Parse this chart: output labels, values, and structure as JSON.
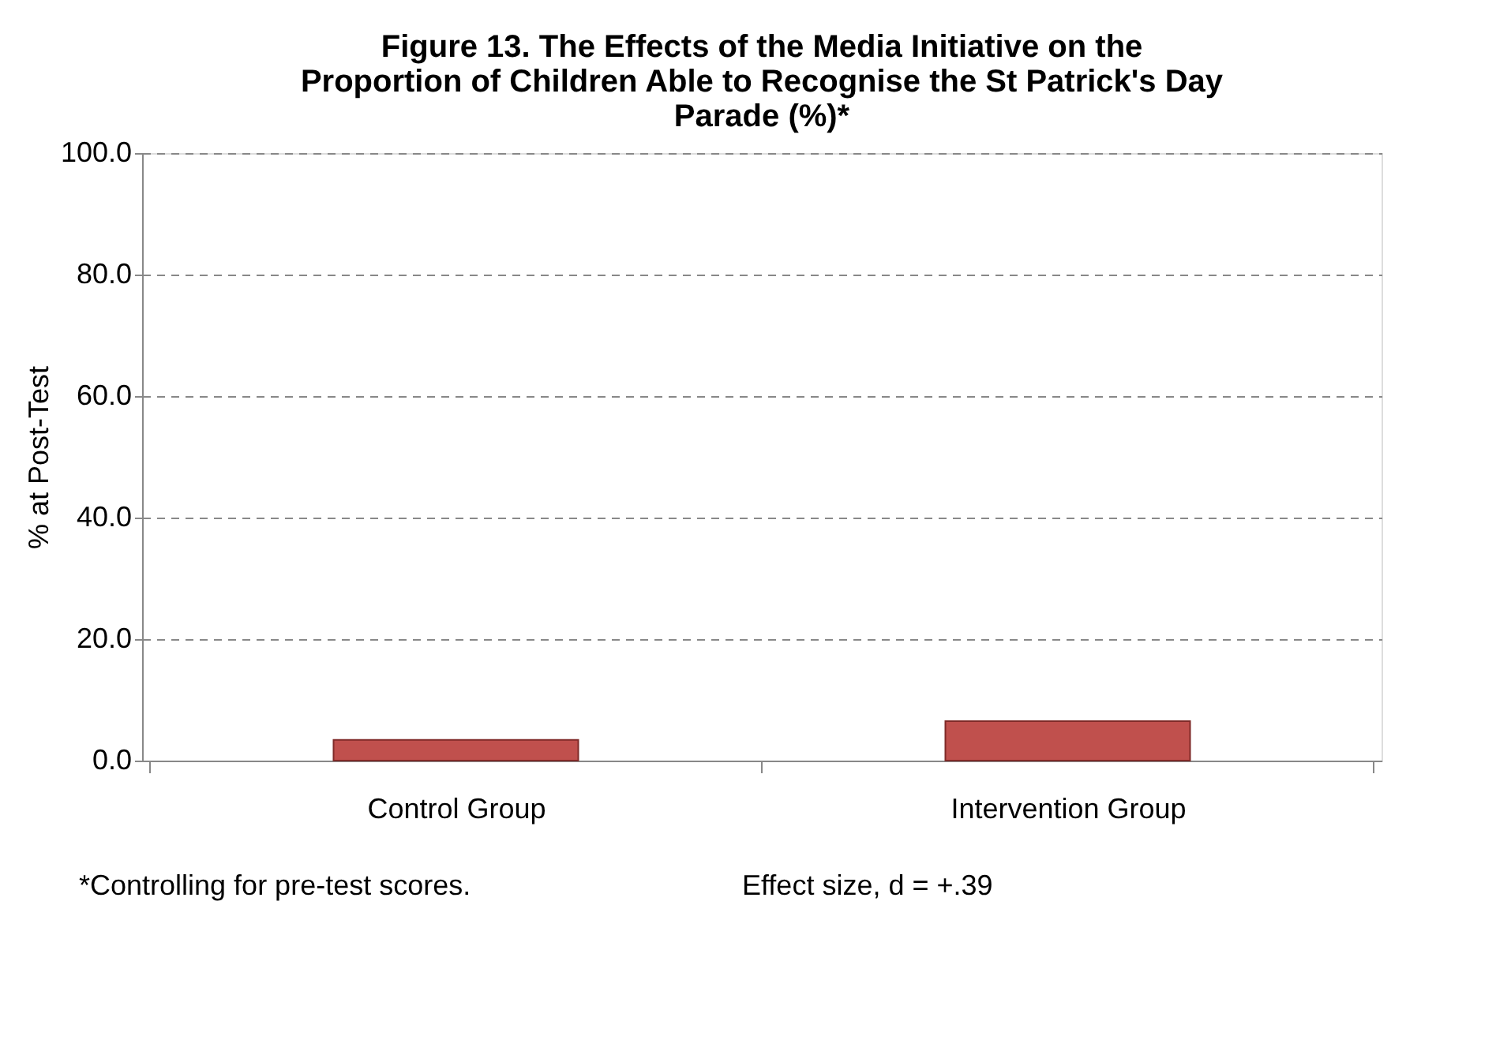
{
  "chart_data": {
    "type": "bar",
    "title": "Figure 13. The Effects of the Media Initiative on the Proportion of Children Able to Recognise the St Patrick's Day Parade (%)*",
    "ylabel": "% at Post-Test",
    "categories": [
      "Control Group",
      "Intervention Group"
    ],
    "values": [
      3.4,
      6.5
    ],
    "color": "#c0504d",
    "ylim": [
      0,
      100
    ],
    "yticks": [
      {
        "value": 0,
        "label": "0.0"
      },
      {
        "value": 20,
        "label": "20.0"
      },
      {
        "value": 40,
        "label": "40.0"
      },
      {
        "value": 60,
        "label": "60.0"
      },
      {
        "value": 80,
        "label": "80.0"
      },
      {
        "value": 100,
        "label": "100.0"
      }
    ],
    "grid": "y",
    "annotations": [
      "*Controlling for pre-test scores.",
      "Effect size, d = +.39"
    ]
  }
}
